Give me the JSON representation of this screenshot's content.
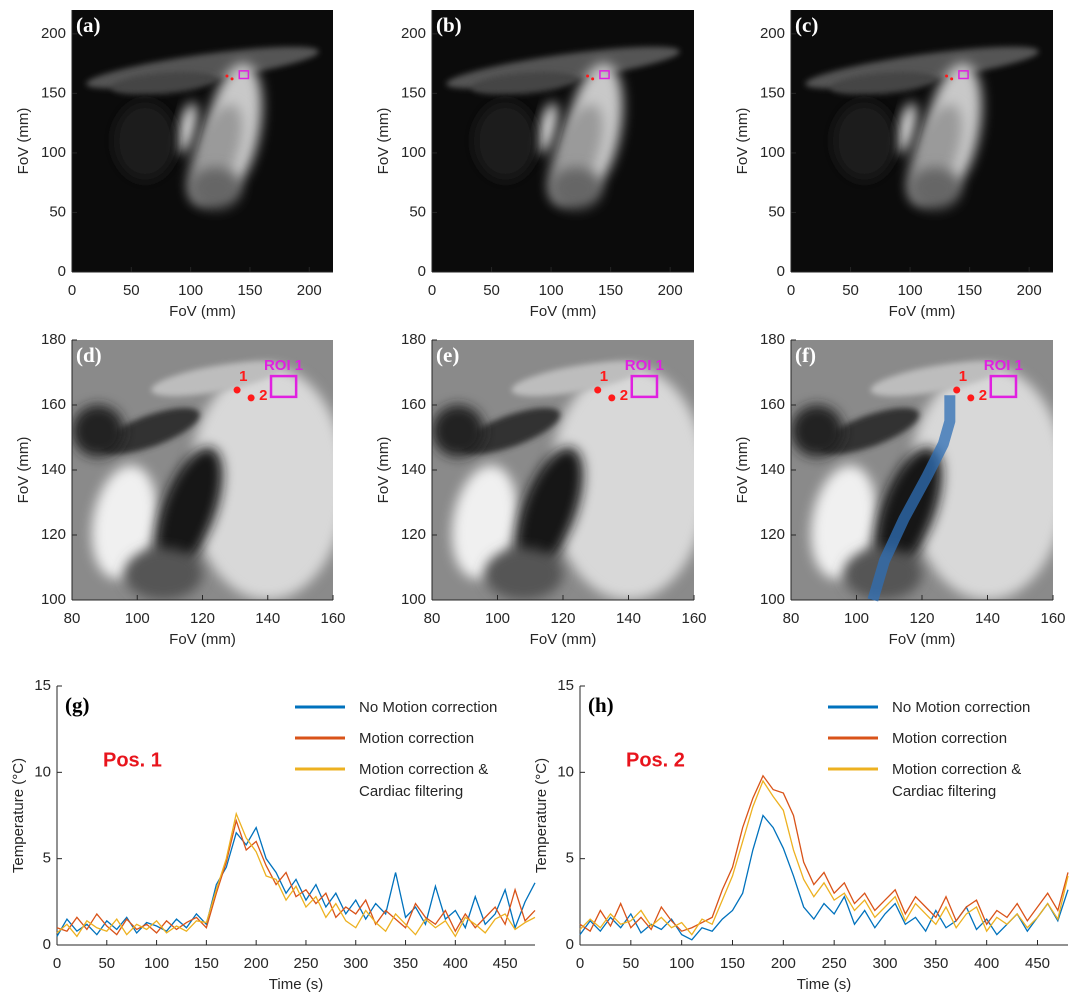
{
  "chart_data": [
    {
      "type": "image",
      "label": "(a)",
      "xlabel": "FoV (mm)",
      "ylabel": "FoV (mm)",
      "xlim": [
        0,
        220
      ],
      "ylim": [
        0,
        220
      ],
      "xticks": [
        0,
        50,
        100,
        150,
        200
      ],
      "yticks": [
        0,
        50,
        100,
        150,
        200
      ],
      "points": [
        {
          "x": 130.6,
          "y": 164.6
        },
        {
          "x": 134.9,
          "y": 162.2
        }
      ],
      "roi": {
        "x": [
          141,
          148.7
        ],
        "y": [
          162.5,
          168.9
        ]
      }
    },
    {
      "type": "image",
      "label": "(b)",
      "xlabel": "FoV (mm)",
      "ylabel": "FoV (mm)",
      "xlim": [
        0,
        220
      ],
      "ylim": [
        0,
        220
      ],
      "xticks": [
        0,
        50,
        100,
        150,
        200
      ],
      "yticks": [
        0,
        50,
        100,
        150,
        200
      ],
      "points": [
        {
          "x": 130.6,
          "y": 164.6
        },
        {
          "x": 134.9,
          "y": 162.2
        }
      ],
      "roi": {
        "x": [
          141,
          148.7
        ],
        "y": [
          162.5,
          168.9
        ]
      }
    },
    {
      "type": "image",
      "label": "(c)",
      "xlabel": "FoV (mm)",
      "ylabel": "FoV (mm)",
      "xlim": [
        0,
        220
      ],
      "ylim": [
        0,
        220
      ],
      "xticks": [
        0,
        50,
        100,
        150,
        200
      ],
      "yticks": [
        0,
        50,
        100,
        150,
        200
      ],
      "points": [
        {
          "x": 130.6,
          "y": 164.6
        },
        {
          "x": 134.9,
          "y": 162.2
        }
      ],
      "roi": {
        "x": [
          141,
          148.7
        ],
        "y": [
          162.5,
          168.9
        ]
      }
    },
    {
      "type": "image",
      "label": "(d)",
      "xlabel": "FoV (mm)",
      "ylabel": "FoV (mm)",
      "xlim": [
        80,
        160
      ],
      "ylim": [
        100,
        180
      ],
      "xticks": [
        80,
        100,
        120,
        140,
        160
      ],
      "yticks": [
        100,
        120,
        140,
        160,
        180
      ],
      "points": [
        {
          "label": "1",
          "x": 130.6,
          "y": 164.6
        },
        {
          "label": "2",
          "x": 134.9,
          "y": 162.2
        }
      ],
      "roi": {
        "label": "ROI 1",
        "x": [
          141,
          148.7
        ],
        "y": [
          162.5,
          168.9
        ]
      }
    },
    {
      "type": "image",
      "label": "(e)",
      "xlabel": "FoV (mm)",
      "ylabel": "FoV (mm)",
      "xlim": [
        80,
        160
      ],
      "ylim": [
        100,
        180
      ],
      "xticks": [
        80,
        100,
        120,
        140,
        160
      ],
      "yticks": [
        100,
        120,
        140,
        160,
        180
      ],
      "points": [
        {
          "label": "1",
          "x": 130.6,
          "y": 164.6
        },
        {
          "label": "2",
          "x": 134.9,
          "y": 162.2
        }
      ],
      "roi": {
        "label": "ROI 1",
        "x": [
          141,
          148.7
        ],
        "y": [
          162.5,
          168.9
        ]
      }
    },
    {
      "type": "image",
      "label": "(f)",
      "xlabel": "FoV (mm)",
      "ylabel": "FoV (mm)",
      "xlim": [
        80,
        160
      ],
      "ylim": [
        100,
        180
      ],
      "xticks": [
        80,
        100,
        120,
        140,
        160
      ],
      "yticks": [
        100,
        120,
        140,
        160,
        180
      ],
      "points": [
        {
          "label": "1",
          "x": 130.6,
          "y": 164.6
        },
        {
          "label": "2",
          "x": 134.9,
          "y": 162.2
        }
      ],
      "roi": {
        "label": "ROI 1",
        "x": [
          141,
          148.7
        ],
        "y": [
          162.5,
          168.9
        ]
      },
      "catheter": {
        "color": "#2f6fb5",
        "x": [
          128.5,
          128.5,
          126.5,
          121.5,
          114.5,
          108.5,
          105
        ],
        "y": [
          163,
          155,
          148,
          138,
          125,
          112,
          100
        ]
      }
    },
    {
      "type": "line",
      "label": "(g)",
      "annotation": "Pos. 1",
      "xlabel": "Time (s)",
      "ylabel": "Temperature (°C)",
      "xlim": [
        0,
        480
      ],
      "ylim": [
        0,
        15
      ],
      "xticks": [
        0,
        50,
        100,
        150,
        200,
        250,
        300,
        350,
        400,
        450
      ],
      "yticks": [
        0,
        5,
        10,
        15
      ],
      "legend": "upper right",
      "x": [
        0,
        10,
        20,
        30,
        40,
        50,
        60,
        70,
        80,
        90,
        100,
        110,
        120,
        130,
        140,
        150,
        160,
        170,
        180,
        190,
        200,
        210,
        220,
        230,
        240,
        250,
        260,
        270,
        280,
        290,
        300,
        310,
        320,
        330,
        340,
        350,
        360,
        370,
        380,
        390,
        400,
        410,
        420,
        430,
        440,
        450,
        460,
        470,
        480
      ],
      "series": [
        {
          "name": "No Motion correction",
          "color": "#0072bd",
          "values": [
            0.5,
            1.5,
            0.8,
            1.2,
            0.6,
            1.4,
            0.9,
            1.6,
            0.7,
            1.3,
            1.1,
            0.8,
            1.5,
            1.0,
            1.8,
            1.2,
            3.5,
            4.5,
            6.5,
            5.8,
            6.8,
            5.0,
            4.2,
            3.0,
            3.8,
            2.6,
            3.5,
            2.2,
            3.0,
            1.8,
            2.6,
            1.5,
            2.4,
            1.8,
            4.2,
            1.6,
            2.2,
            1.2,
            3.4,
            1.5,
            2.0,
            1.0,
            2.8,
            1.2,
            1.8,
            3.2,
            1.0,
            2.5,
            3.6
          ]
        },
        {
          "name": "Motion correction",
          "color": "#d95319",
          "values": [
            1.0,
            0.8,
            1.6,
            0.9,
            1.8,
            1.1,
            0.6,
            1.5,
            0.9,
            1.2,
            0.7,
            1.4,
            0.9,
            1.3,
            1.6,
            1.0,
            3.0,
            4.8,
            7.2,
            5.5,
            6.0,
            4.6,
            3.5,
            4.2,
            2.8,
            3.2,
            2.4,
            3.0,
            1.6,
            2.2,
            1.8,
            2.6,
            1.2,
            2.0,
            1.5,
            1.0,
            2.4,
            1.6,
            1.2,
            2.0,
            0.8,
            1.8,
            1.0,
            1.6,
            2.2,
            1.2,
            3.2,
            1.4,
            2.0
          ]
        },
        {
          "name": "Motion correction &\nCardiac filtering",
          "color": "#edb120",
          "values": [
            0.7,
            1.2,
            0.5,
            1.4,
            1.0,
            0.8,
            1.5,
            0.6,
            1.2,
            0.9,
            1.4,
            0.7,
            1.1,
            0.8,
            1.4,
            1.3,
            3.2,
            5.0,
            7.6,
            6.2,
            5.4,
            4.0,
            3.8,
            2.6,
            3.4,
            2.2,
            2.8,
            1.6,
            2.4,
            1.4,
            1.0,
            2.0,
            1.3,
            0.8,
            1.8,
            1.2,
            0.6,
            1.5,
            1.0,
            1.4,
            0.5,
            1.6,
            1.2,
            0.7,
            1.5,
            1.8,
            0.9,
            1.3,
            1.6
          ]
        }
      ]
    },
    {
      "type": "line",
      "label": "(h)",
      "annotation": "Pos. 2",
      "xlabel": "Time (s)",
      "ylabel": "Temperature (°C)",
      "xlim": [
        0,
        480
      ],
      "ylim": [
        0,
        15
      ],
      "xticks": [
        0,
        50,
        100,
        150,
        200,
        250,
        300,
        350,
        400,
        450
      ],
      "yticks": [
        0,
        5,
        10,
        15
      ],
      "legend": "upper right",
      "x": [
        0,
        10,
        20,
        30,
        40,
        50,
        60,
        70,
        80,
        90,
        100,
        110,
        120,
        130,
        140,
        150,
        160,
        170,
        180,
        190,
        200,
        210,
        220,
        230,
        240,
        250,
        260,
        270,
        280,
        290,
        300,
        310,
        320,
        330,
        340,
        350,
        360,
        370,
        380,
        390,
        400,
        410,
        420,
        430,
        440,
        450,
        460,
        470,
        480
      ],
      "series": [
        {
          "name": "No Motion correction",
          "color": "#0072bd",
          "values": [
            0.6,
            1.4,
            0.8,
            1.6,
            1.0,
            1.8,
            0.7,
            1.2,
            0.9,
            1.5,
            0.6,
            0.3,
            1.0,
            0.8,
            1.5,
            2.0,
            3.0,
            5.5,
            7.5,
            6.8,
            5.6,
            4.0,
            2.2,
            1.5,
            2.4,
            1.8,
            2.8,
            1.2,
            2.0,
            1.0,
            1.8,
            2.4,
            1.2,
            1.6,
            0.8,
            2.0,
            1.0,
            1.4,
            2.2,
            0.9,
            1.5,
            0.6,
            1.2,
            1.8,
            0.8,
            1.6,
            2.4,
            1.4,
            3.2
          ]
        },
        {
          "name": "Motion correction",
          "color": "#d95319",
          "values": [
            1.2,
            0.8,
            2.0,
            1.1,
            2.4,
            1.0,
            1.6,
            0.9,
            2.2,
            1.4,
            0.8,
            1.0,
            1.3,
            1.6,
            3.2,
            4.5,
            6.8,
            8.5,
            9.8,
            9.0,
            8.8,
            7.5,
            4.8,
            3.5,
            4.2,
            3.0,
            3.6,
            2.4,
            3.0,
            2.0,
            2.6,
            3.2,
            1.8,
            2.8,
            2.2,
            1.6,
            2.8,
            1.4,
            2.2,
            2.6,
            1.2,
            2.0,
            1.6,
            2.4,
            1.4,
            2.2,
            3.0,
            2.0,
            4.2
          ]
        },
        {
          "name": "Motion correction &\nCardiac filtering",
          "color": "#edb120",
          "values": [
            0.9,
            1.5,
            1.0,
            1.8,
            1.2,
            1.4,
            2.0,
            1.1,
            1.6,
            1.0,
            1.3,
            0.6,
            1.5,
            1.2,
            2.6,
            4.0,
            6.0,
            8.0,
            9.5,
            8.6,
            7.8,
            5.5,
            3.8,
            2.8,
            3.6,
            2.6,
            3.0,
            2.0,
            2.6,
            1.6,
            2.2,
            2.8,
            1.4,
            2.4,
            1.8,
            1.2,
            2.2,
            1.0,
            1.8,
            2.2,
            0.8,
            1.6,
            1.2,
            1.8,
            1.0,
            1.6,
            2.4,
            1.5,
            4.0
          ]
        }
      ]
    }
  ]
}
